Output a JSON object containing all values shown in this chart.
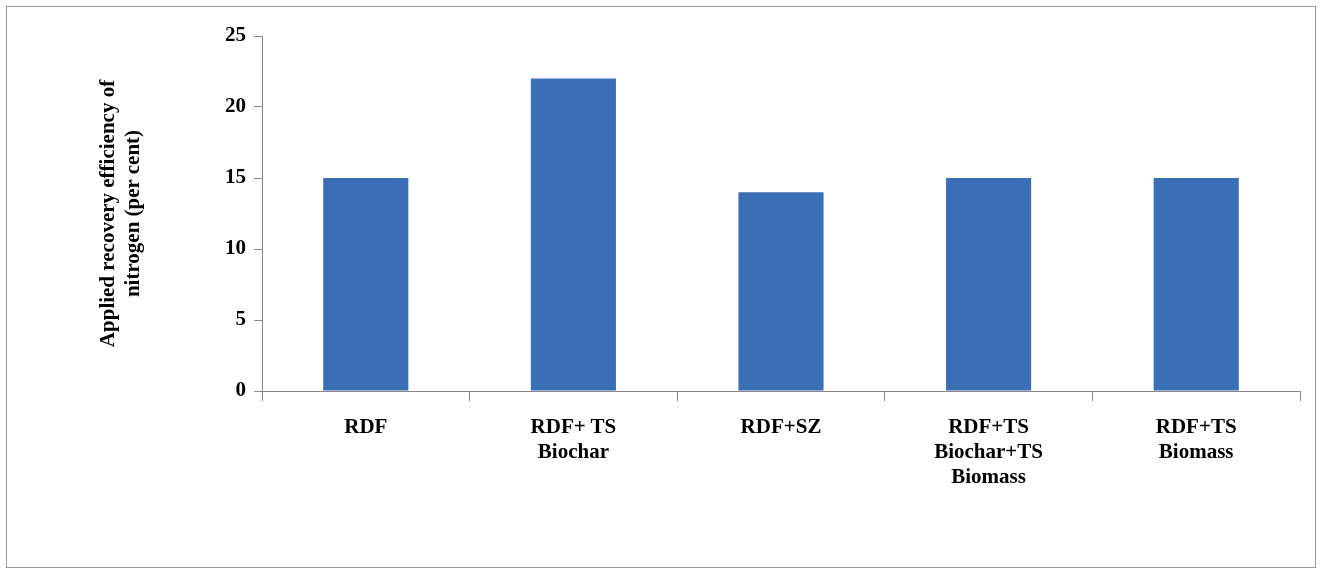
{
  "chart_data": {
    "type": "bar",
    "ylabel": "Applied recovery efficiency of nitrogen (per cent)",
    "categories": [
      "RDF",
      "RDF+ TS\nBiochar",
      "RDF+SZ",
      "RDF+TS\nBiochar+TS\nBiomass",
      "RDF+TS\nBiomass"
    ],
    "values": [
      15,
      22,
      14,
      15,
      15
    ],
    "color": "#3a6eb5",
    "ylim": [
      0,
      25
    ],
    "yticks": [
      0,
      5,
      10,
      15,
      20,
      25
    ],
    "grid": false
  }
}
